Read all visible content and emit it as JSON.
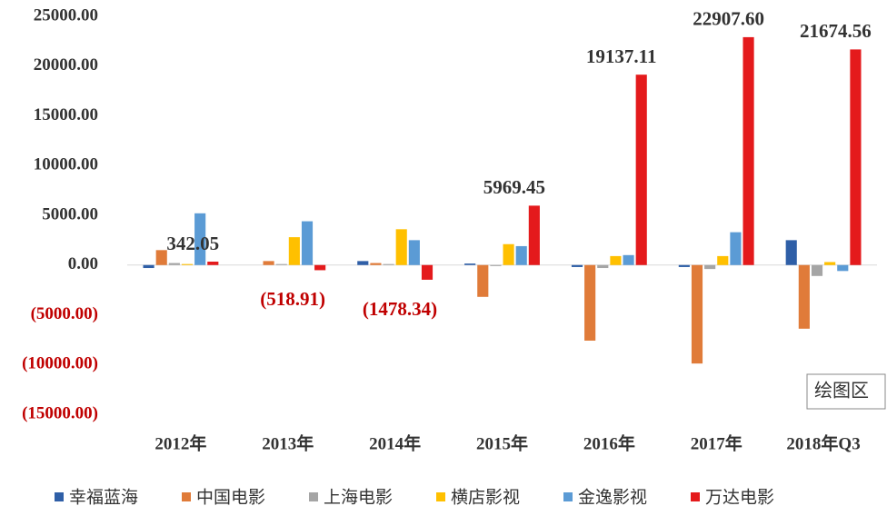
{
  "chart_data": {
    "type": "bar",
    "categories": [
      "2012年",
      "2013年",
      "2014年",
      "2015年",
      "2016年",
      "2017年",
      "2018年Q3"
    ],
    "series": [
      {
        "name": "幸福蓝海",
        "color": "#2f5fa7",
        "values": [
          -300,
          0,
          400,
          150,
          -200,
          -200,
          2500
        ]
      },
      {
        "name": "中国电影",
        "color": "#e07b39",
        "values": [
          1500,
          400,
          200,
          -3200,
          -7600,
          -9900,
          -6400
        ]
      },
      {
        "name": "上海电影",
        "color": "#a5a5a5",
        "values": [
          200,
          100,
          100,
          -100,
          -300,
          -400,
          -1100
        ]
      },
      {
        "name": "横店影视",
        "color": "#ffc000",
        "values": [
          100,
          2800,
          3600,
          2100,
          900,
          900,
          300
        ]
      },
      {
        "name": "金逸影视",
        "color": "#5b9bd5",
        "values": [
          5200,
          4400,
          2500,
          1900,
          1000,
          3300,
          -600
        ]
      },
      {
        "name": "万达电影",
        "color": "#e41a1c",
        "values": [
          342.05,
          -518.91,
          -1478.34,
          5969.45,
          19137.11,
          22907.6,
          21674.56
        ],
        "value_labels": [
          "342.05",
          "(518.91)",
          "(1478.34)",
          "5969.45",
          "19137.11",
          "22907.60",
          "21674.56"
        ]
      }
    ],
    "ylim": [
      -15000,
      25000
    ],
    "yticks": [
      {
        "value": -15000,
        "label": "(15000.00)"
      },
      {
        "value": -10000,
        "label": "(10000.00)"
      },
      {
        "value": -5000,
        "label": "(5000.00)"
      },
      {
        "value": 0,
        "label": "0.00"
      },
      {
        "value": 5000,
        "label": "5000.00"
      },
      {
        "value": 10000,
        "label": "10000.00"
      },
      {
        "value": 15000,
        "label": "15000.00"
      },
      {
        "value": 20000,
        "label": "20000.00"
      },
      {
        "value": 25000,
        "label": "25000.00"
      }
    ],
    "grid": false,
    "legend": "bottom",
    "annotation": "绘图区"
  }
}
